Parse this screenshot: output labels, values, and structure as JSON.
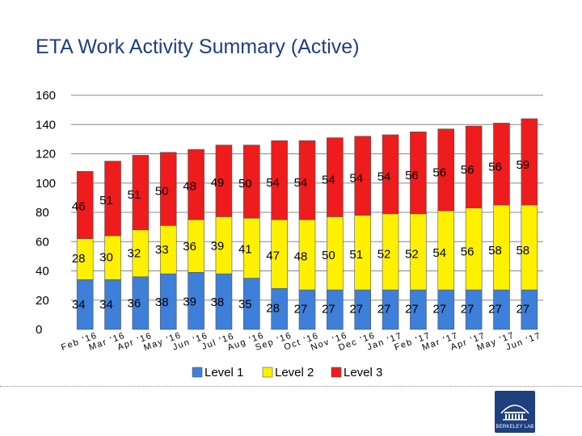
{
  "title": "ETA Work Activity Summary (Active)",
  "logo": {
    "text": "BERKELEY LAB"
  },
  "colors": {
    "level1": "#3e7fd9",
    "level2": "#fff000",
    "level3": "#ee1c1c",
    "grid": "#888888"
  },
  "chart_data": {
    "type": "bar",
    "stacked": true,
    "title": "",
    "xlabel": "",
    "ylabel": "",
    "ylim": [
      0,
      160
    ],
    "yticks": [
      0,
      20,
      40,
      60,
      80,
      100,
      120,
      140,
      160
    ],
    "grid": true,
    "legend_position": "bottom",
    "categories": [
      "Feb '16",
      "Mar '16",
      "Apr '16",
      "May '16",
      "Jun '16",
      "Jul '16",
      "Aug '16",
      "Sep '16",
      "Oct '16",
      "Nov '16",
      "Dec '16",
      "Jan '17",
      "Feb '17",
      "Mar '17",
      "Apr '17",
      "May '17",
      "Jun '17"
    ],
    "series": [
      {
        "name": "Level 1",
        "color": "#3e7fd9",
        "values": [
          34,
          34,
          36,
          38,
          39,
          38,
          35,
          28,
          27,
          27,
          27,
          27,
          27,
          27,
          27,
          27,
          27
        ],
        "labels": [
          "34",
          "34",
          "36",
          "38",
          "39",
          "38",
          "35",
          "28",
          "27",
          "27",
          "27",
          "27",
          "27",
          "27",
          "27",
          "27",
          "27"
        ]
      },
      {
        "name": "Level 2",
        "color": "#fff000",
        "values": [
          28,
          30,
          32,
          33,
          36,
          39,
          41,
          47,
          48,
          50,
          51,
          52,
          52,
          54,
          56,
          58,
          58
        ],
        "labels": [
          "28",
          "30",
          "32",
          "33",
          "36",
          "39",
          "41",
          "47",
          "48",
          "50",
          "51",
          "52",
          "52",
          "54",
          "56",
          "58",
          "58"
        ]
      },
      {
        "name": "Level 3",
        "color": "#ee1c1c",
        "values": [
          46,
          51,
          51,
          50,
          48,
          49,
          50,
          54,
          54,
          54,
          54,
          54,
          56,
          56,
          56,
          56,
          59
        ],
        "labels": [
          "46",
          "51",
          "51",
          "50",
          "48",
          "49",
          "50",
          "54",
          "54",
          "54",
          "54",
          "54",
          "56",
          "56",
          "56",
          "56",
          "59"
        ]
      }
    ]
  }
}
